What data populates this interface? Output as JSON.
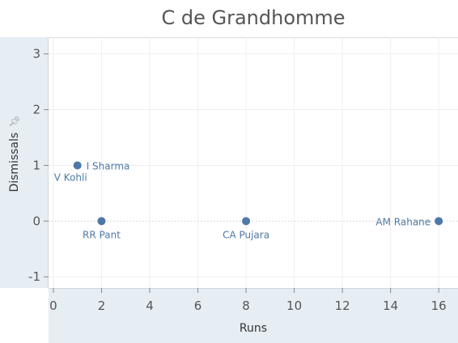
{
  "chart_data": {
    "type": "scatter",
    "title": "C de Grandhomme",
    "xlabel": "Runs",
    "ylabel": "Dismissals",
    "xlim": [
      -0.2,
      16.8
    ],
    "ylim": [
      -1.2,
      3.3
    ],
    "xticks": [
      0,
      2,
      4,
      6,
      8,
      10,
      12,
      14,
      16
    ],
    "yticks": [
      -1,
      0,
      1,
      2,
      3
    ],
    "grid": true,
    "color": "#4e79a7",
    "points": [
      {
        "label": "I Sharma",
        "x": 1,
        "y": 1
      },
      {
        "label": "V Kohli",
        "x": 1,
        "y": 1
      },
      {
        "label": "RR Pant",
        "x": 2,
        "y": 0
      },
      {
        "label": "CA Pujara",
        "x": 8,
        "y": 0
      },
      {
        "label": "AM Rahane",
        "x": 16,
        "y": 0
      }
    ]
  }
}
